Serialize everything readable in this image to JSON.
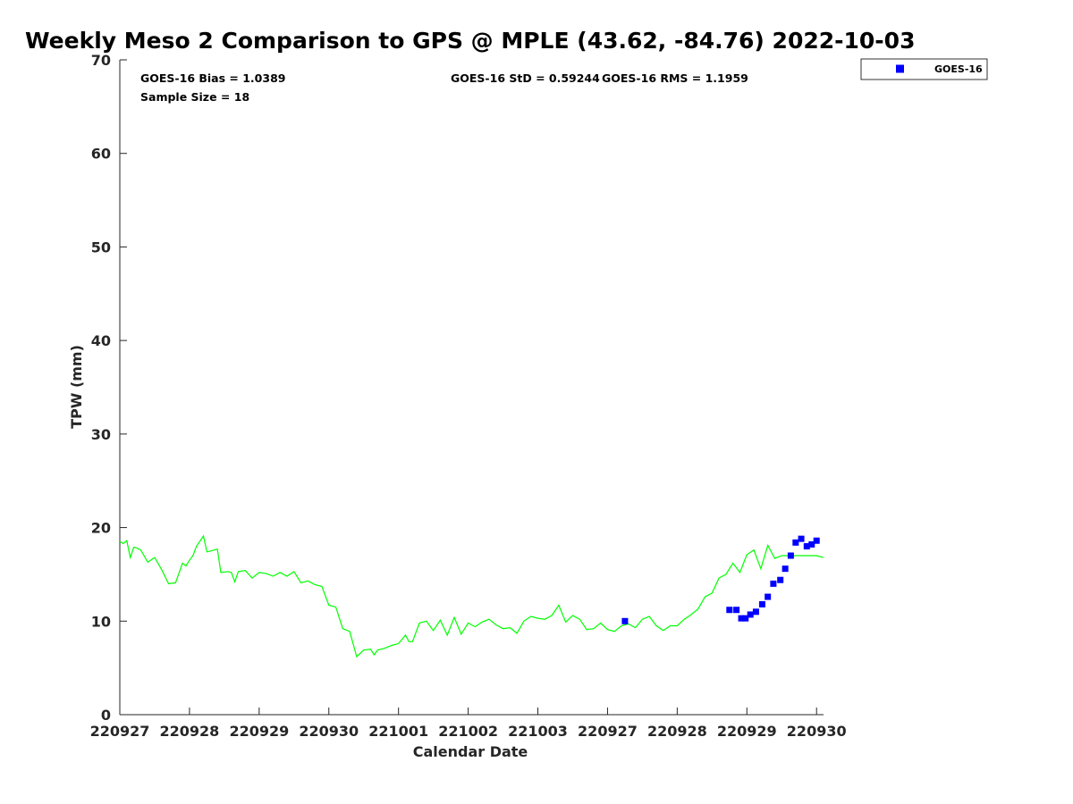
{
  "chart_data": {
    "type": "line",
    "title": "Weekly Meso 2 Comparison to GPS @ MPLE (43.62, -84.76) 2022-10-03",
    "xlabel": "Calendar Date",
    "ylabel": "TPW (mm)",
    "ylim": [
      0,
      70
    ],
    "yticks": [
      0,
      10,
      20,
      30,
      40,
      50,
      60,
      70
    ],
    "xticks": [
      0,
      1,
      2,
      3,
      4,
      5,
      6,
      7,
      8,
      9,
      10
    ],
    "xtick_labels": [
      "220927",
      "220928",
      "220929",
      "220930",
      "221001",
      "221002",
      "221003",
      "220927",
      "220928",
      "220929",
      "220930"
    ],
    "xlim": [
      0,
      10.1
    ],
    "grid": false,
    "legend_position": "top-right",
    "stats": {
      "bias": "GOES-16 Bias = 1.0389",
      "std": "GOES-16 StD = 0.59244",
      "rms": "GOES-16 RMS = 1.1959",
      "sample": "Sample Size = 18"
    },
    "series": [
      {
        "kind": "line",
        "color": "#00ff00",
        "x": [
          0,
          0.05,
          0.1,
          0.15,
          0.2,
          0.25,
          0.3,
          0.4,
          0.5,
          0.6,
          0.7,
          0.8,
          0.9,
          0.95,
          1.0,
          1.05,
          1.1,
          1.2,
          1.25,
          1.3,
          1.4,
          1.45,
          1.55,
          1.6,
          1.65,
          1.7,
          1.8,
          1.9,
          2.0,
          2.1,
          2.2,
          2.3,
          2.4,
          2.5,
          2.6,
          2.7,
          2.8,
          2.9,
          3.0,
          3.1,
          3.2,
          3.3,
          3.4,
          3.5,
          3.6,
          3.65,
          3.7,
          3.8,
          3.9,
          4.0,
          4.1,
          4.15,
          4.2,
          4.3,
          4.4,
          4.5,
          4.6,
          4.7,
          4.8,
          4.9,
          5.0,
          5.1,
          5.2,
          5.3,
          5.4,
          5.5,
          5.6,
          5.7,
          5.8,
          5.9,
          6.0,
          6.1,
          6.2,
          6.3,
          6.4,
          6.5,
          6.6,
          6.7,
          6.8,
          6.9,
          7.0,
          7.1,
          7.2,
          7.3,
          7.4,
          7.5,
          7.6,
          7.7,
          7.8,
          7.9,
          8.0,
          8.1,
          8.2,
          8.3,
          8.4,
          8.5,
          8.6,
          8.7,
          8.8,
          8.9,
          9.0,
          9.1,
          9.2,
          9.3,
          9.4,
          9.5,
          9.6,
          9.7,
          9.8,
          9.9,
          10.0,
          10.1
        ],
        "y": [
          18.5,
          18.3,
          18.6,
          16.8,
          17.9,
          17.8,
          17.6,
          16.3,
          16.8,
          15.5,
          14.0,
          14.1,
          16.2,
          15.9,
          16.5,
          17.0,
          18.0,
          19.1,
          17.4,
          17.5,
          17.7,
          15.2,
          15.3,
          15.2,
          14.2,
          15.3,
          15.4,
          14.6,
          15.2,
          15.1,
          14.8,
          15.2,
          14.8,
          15.3,
          14.1,
          14.3,
          13.9,
          13.7,
          11.7,
          11.5,
          9.2,
          8.9,
          6.2,
          6.9,
          7.0,
          6.4,
          6.9,
          7.1,
          7.4,
          7.6,
          8.5,
          7.8,
          7.8,
          9.8,
          10.0,
          9.0,
          10.1,
          8.5,
          10.4,
          8.6,
          9.8,
          9.4,
          9.9,
          10.2,
          9.6,
          9.2,
          9.3,
          8.7,
          10.0,
          10.5,
          10.3,
          10.2,
          10.6,
          11.7,
          9.9,
          10.6,
          10.2,
          9.1,
          9.2,
          9.8,
          9.1,
          8.9,
          9.5,
          9.7,
          9.3,
          10.2,
          10.5,
          9.5,
          9.0,
          9.5,
          9.5,
          10.2,
          10.7,
          11.3,
          12.6,
          13.0,
          14.6,
          15.0,
          16.2,
          15.2,
          17.1,
          17.6,
          15.6,
          18.1,
          16.7,
          17.0,
          17.0,
          17.0,
          17.0,
          17.0,
          17.0,
          16.8
        ]
      },
      {
        "kind": "scatter",
        "name": "GOES-16",
        "color": "#0000ff",
        "x": [
          7.25,
          8.75,
          8.85,
          8.92,
          8.98,
          9.05,
          9.13,
          9.22,
          9.3,
          9.38,
          9.48,
          9.55,
          9.63,
          9.7,
          9.78,
          9.86,
          9.93,
          10.0
        ],
        "y": [
          10.0,
          11.2,
          11.2,
          10.3,
          10.3,
          10.7,
          11.0,
          11.8,
          12.6,
          14.0,
          14.4,
          15.6,
          17.0,
          18.4,
          18.8,
          18.0,
          18.2,
          18.6
        ]
      }
    ]
  }
}
